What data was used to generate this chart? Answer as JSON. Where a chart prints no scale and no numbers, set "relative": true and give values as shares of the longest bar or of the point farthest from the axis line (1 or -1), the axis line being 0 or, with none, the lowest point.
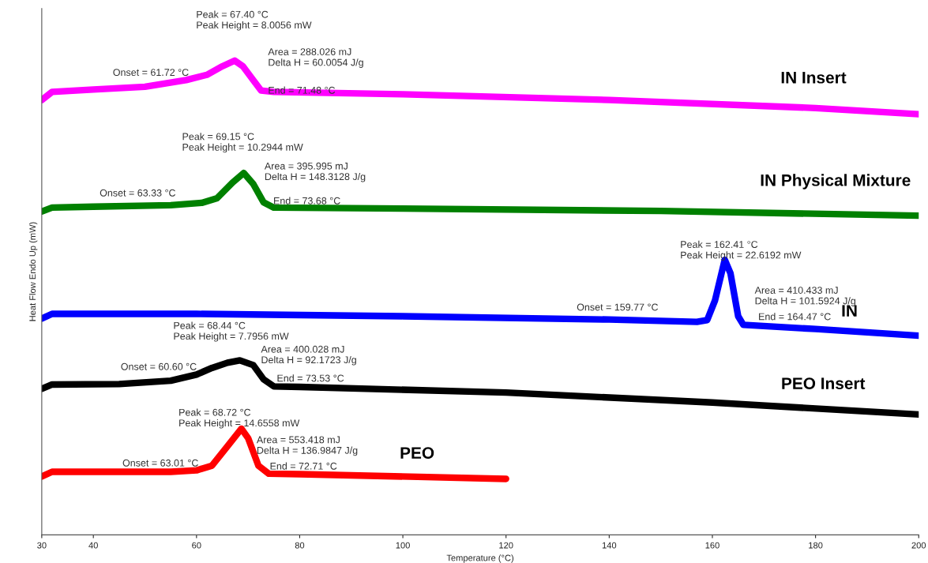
{
  "chart_data": {
    "type": "line",
    "relative": true,
    "xlabel": "Temperature (°C)",
    "ylabel": "Heat Flow Endo Up (mW)",
    "xlim": [
      30,
      200
    ],
    "xticks": [
      30,
      40,
      60,
      80,
      100,
      120,
      140,
      160,
      180,
      200
    ],
    "grid": false,
    "legend": false,
    "marker": "none",
    "line_style": "solid",
    "series": [
      {
        "name": "IN Insert",
        "color": "#ff00ff",
        "x": [
          30,
          32,
          40,
          50,
          58,
          62,
          65,
          67.4,
          69,
          71,
          72.5,
          75,
          100,
          140,
          180,
          200
        ],
        "values": [
          0.917,
          0.934,
          0.939,
          0.945,
          0.959,
          0.97,
          0.988,
          1.0,
          0.988,
          0.959,
          0.937,
          0.934,
          0.929,
          0.917,
          0.9,
          0.887
        ]
      },
      {
        "name": "IN Physical Mixture",
        "color": "#008000",
        "x": [
          30,
          32,
          40,
          55,
          61,
          64,
          67,
          69.15,
          71,
          73,
          75,
          100,
          150,
          200
        ],
        "values": [
          0.682,
          0.69,
          0.692,
          0.695,
          0.7,
          0.71,
          0.743,
          0.763,
          0.74,
          0.701,
          0.69,
          0.688,
          0.683,
          0.673
        ]
      },
      {
        "name": "IN",
        "color": "#0000ff",
        "x": [
          30,
          32,
          60,
          100,
          140,
          157,
          159,
          160.5,
          162.4,
          163.5,
          165,
          166,
          180,
          200
        ],
        "values": [
          0.456,
          0.466,
          0.466,
          0.461,
          0.454,
          0.449,
          0.453,
          0.494,
          0.58,
          0.552,
          0.461,
          0.443,
          0.434,
          0.42
        ]
      },
      {
        "name": "PEO Insert",
        "color": "#000000",
        "x": [
          30,
          32,
          45,
          55,
          60,
          63,
          66,
          68.4,
          71,
          73,
          75,
          80,
          120,
          160,
          200
        ],
        "values": [
          0.308,
          0.317,
          0.318,
          0.325,
          0.338,
          0.352,
          0.363,
          0.368,
          0.358,
          0.328,
          0.313,
          0.312,
          0.3,
          0.279,
          0.254
        ]
      },
      {
        "name": "PEO",
        "color": "#ff0000",
        "x": [
          30,
          32,
          55,
          60,
          63,
          66,
          68.7,
          70,
          72,
          74,
          80,
          120
        ],
        "values": [
          0.123,
          0.133,
          0.133,
          0.136,
          0.146,
          0.187,
          0.224,
          0.204,
          0.146,
          0.129,
          0.128,
          0.118
        ]
      }
    ],
    "annotations": [
      "Peak = 67.40 °C\nPeak Height = 8.0056 mW",
      "Area = 288.026 mJ\nDelta H = 60.0054 J/g",
      "Onset = 61.72 °C",
      "End = 71.48 °C",
      "Peak = 69.15 °C\nPeak Height = 10.2944 mW",
      "Area = 395.995 mJ\nDelta H = 148.3128 J/g",
      "Onset = 63.33 °C",
      "End = 73.68 °C",
      "Peak = 162.41 °C\nPeak Height = 22.6192 mW",
      "Area = 410.433 mJ\nDelta H = 101.5924 J/g",
      "Onset = 159.77 °C",
      "End = 164.47 °C",
      "Peak = 68.44 °C\nPeak Height = 7.7956 mW",
      "Area = 400.028 mJ\nDelta H = 92.1723 J/g",
      "Onset = 60.60 °C",
      "End = 73.53 °C",
      "Peak = 68.72 °C\nPeak Height = 14.6558 mW",
      "Area = 553.418 mJ\nDelta H = 136.9847 J/g",
      "Onset = 63.01 °C",
      "End = 72.71 °C"
    ]
  }
}
